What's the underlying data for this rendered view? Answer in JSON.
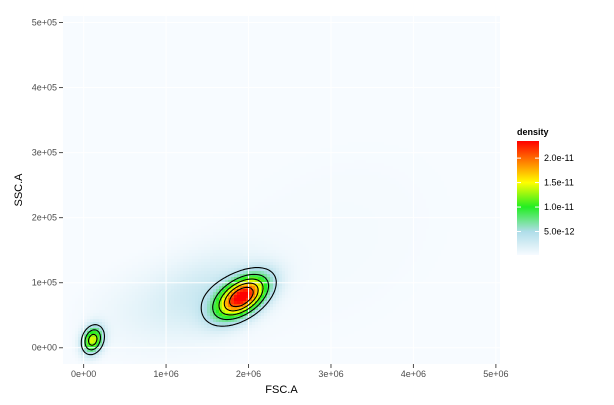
{
  "chart_data": {
    "type": "heatmap",
    "subtype": "2d-density-contour",
    "xlabel": "FSC.A",
    "ylabel": "SSC.A",
    "xlim": [
      -250000,
      5050000
    ],
    "ylim": [
      -25000,
      510000
    ],
    "x_ticks": [
      {
        "value": 0,
        "label": "0e+00"
      },
      {
        "value": 1000000,
        "label": "1e+06"
      },
      {
        "value": 2000000,
        "label": "2e+06"
      },
      {
        "value": 3000000,
        "label": "3e+06"
      },
      {
        "value": 4000000,
        "label": "4e+06"
      },
      {
        "value": 5000000,
        "label": "5e+06"
      }
    ],
    "y_ticks": [
      {
        "value": 0,
        "label": "0e+00"
      },
      {
        "value": 100000,
        "label": "1e+05"
      },
      {
        "value": 200000,
        "label": "2e+05"
      },
      {
        "value": 300000,
        "label": "3e+05"
      },
      {
        "value": 400000,
        "label": "4e+05"
      },
      {
        "value": 500000,
        "label": "5e+05"
      }
    ],
    "grid": true,
    "legend": {
      "title": "density",
      "placement": "right",
      "range": [
        2e-13,
        2.35e-11
      ],
      "gradient_stops": [
        {
          "value": 2e-13,
          "color": "#f7fbff"
        },
        {
          "value": 5e-12,
          "color": "#afdde9"
        },
        {
          "value": 1e-11,
          "color": "#22ee22"
        },
        {
          "value": 1.5e-11,
          "color": "#ffff00"
        },
        {
          "value": 2.35e-11,
          "color": "#ff0000"
        }
      ],
      "ticks": [
        {
          "value": 5e-12,
          "label": "5.0e-12"
        },
        {
          "value": 1e-11,
          "label": "1.0e-11"
        },
        {
          "value": 1.5e-11,
          "label": "1.5e-11"
        },
        {
          "value": 2e-11,
          "label": "2.0e-11"
        }
      ]
    },
    "clusters": [
      {
        "x": 1920000,
        "y": 78000,
        "sx": 210000,
        "sy": 22000,
        "rho": 0.5,
        "peak": 2.3e-11
      },
      {
        "x": 110000,
        "y": 12000,
        "sx": 85000,
        "sy": 14000,
        "rho": 0.2,
        "peak": 1.4e-11
      },
      {
        "x": 1550000,
        "y": 90000,
        "sx": 420000,
        "sy": 40000,
        "rho": 0.3,
        "peak": 2.2e-12
      },
      {
        "x": 900000,
        "y": 60000,
        "sx": 600000,
        "sy": 45000,
        "rho": 0.2,
        "peak": 1.2e-12
      },
      {
        "x": 3000000,
        "y": 160000,
        "sx": 1400000,
        "sy": 150000,
        "rho": 0.3,
        "peak": 4e-13
      }
    ],
    "contour_levels": [
      4e-12,
      8e-12,
      1.2e-11,
      1.6e-11,
      2e-11
    ]
  }
}
